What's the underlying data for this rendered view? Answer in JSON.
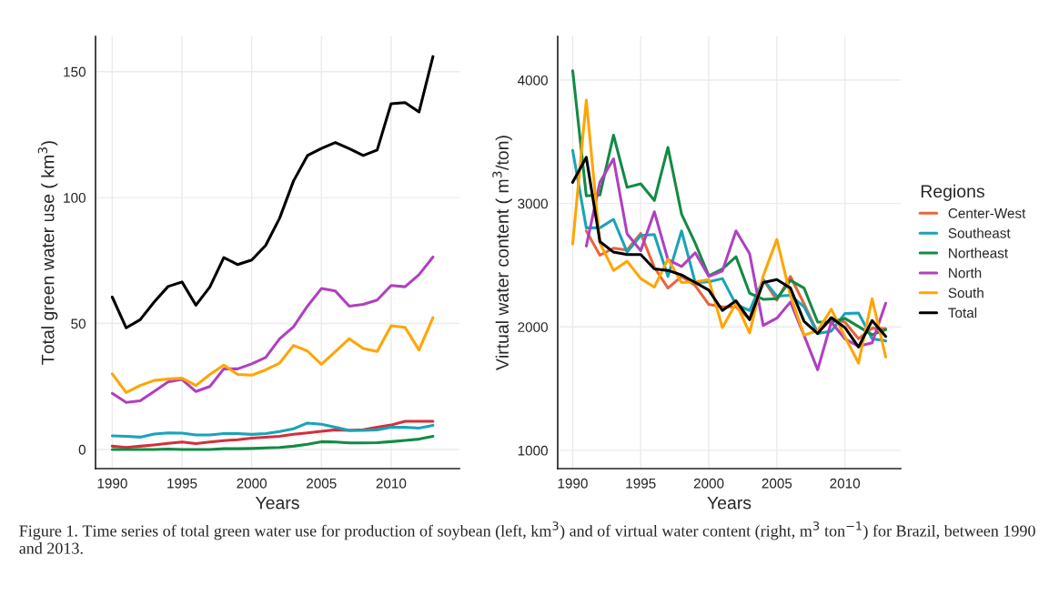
{
  "chart_data": [
    {
      "type": "line",
      "xlabel": "Years",
      "ylabel": "Total green water use ( km$^{3}$)",
      "x": [
        1990,
        1991,
        1992,
        1993,
        1994,
        1995,
        1996,
        1997,
        1998,
        1999,
        2000,
        2001,
        2002,
        2003,
        2004,
        2005,
        2006,
        2007,
        2008,
        2009,
        2010,
        2011,
        2012,
        2013
      ],
      "xlim": [
        1988.8,
        2014.9
      ],
      "xticks": [
        1990,
        1995,
        2000,
        2005,
        2010
      ],
      "ylim": [
        -7.6,
        164
      ],
      "yticks": [
        0,
        50,
        100,
        150
      ],
      "grid": true,
      "line_style": "solid",
      "annotations": [
        "Figure 1. Time series of total green water use for production of soybean (left, km$^{3}$) and of virtual water content (right, m$^{3}$ ton$^{−1}$) for Brazil, between 1990 and 2013."
      ],
      "series": [
        {
          "color": "#d42f3c",
          "values": [
            1.3,
            0.8,
            1.3,
            1.8,
            2.4,
            3,
            2.3,
            3,
            3.5,
            3.9,
            4.5,
            4.9,
            5.2,
            6,
            6.6,
            7.2,
            7.8,
            7.6,
            7.8,
            8.8,
            9.7,
            11.2,
            11.2,
            11.2
          ]
        },
        {
          "color": "#1aa3b8",
          "values": [
            5.4,
            5.2,
            4.9,
            6.1,
            6.6,
            6.5,
            5.8,
            5.8,
            6.3,
            6.3,
            6,
            6.3,
            7.1,
            8.2,
            10.5,
            10,
            8.8,
            7.6,
            7.6,
            7.8,
            8.8,
            8.8,
            8.5,
            9.6
          ]
        },
        {
          "color": "#138a45",
          "values": [
            0,
            0,
            0,
            0,
            0.2,
            0,
            0,
            0,
            0.3,
            0.3,
            0.4,
            0.6,
            0.8,
            1.3,
            2.1,
            3.1,
            3,
            2.6,
            2.6,
            2.7,
            3.1,
            3.6,
            4.1,
            5.2
          ]
        },
        {
          "color": "#b040c0",
          "values": [
            22.3,
            18.7,
            19.3,
            23,
            26.8,
            27.8,
            23,
            25,
            32,
            32,
            34,
            36.5,
            43.9,
            48.7,
            56.9,
            63.9,
            62.9,
            56.9,
            57.6,
            59.3,
            65.1,
            64.6,
            69.4,
            76.4
          ]
        },
        {
          "color": "#ffa500",
          "values": [
            30,
            22.6,
            25.4,
            27.4,
            28,
            28.3,
            25.4,
            29.8,
            33.5,
            29.8,
            29.5,
            31.6,
            34.3,
            41.3,
            39.1,
            33.8,
            38.9,
            44,
            40.1,
            38.9,
            49.1,
            48.5,
            39.5,
            52.3
          ]
        },
        {
          "color": "#000000",
          "values": [
            60.5,
            48.3,
            51.5,
            58.5,
            64.7,
            66.5,
            57.3,
            64.5,
            76.2,
            73.4,
            75.2,
            81,
            91.8,
            106.6,
            116.7,
            119.5,
            121.9,
            119.4,
            116.7,
            118.9,
            137.3,
            137.7,
            134,
            156
          ]
        }
      ]
    },
    {
      "type": "line",
      "xlabel": "Years",
      "ylabel": "Virtual water content ( m$^{3}$/ton)",
      "legend_title": "Regions",
      "x": [
        1990,
        1991,
        1992,
        1993,
        1994,
        1995,
        1996,
        1997,
        1998,
        1999,
        2000,
        2001,
        2002,
        2003,
        2004,
        2005,
        2006,
        2007,
        2008,
        2009,
        2010,
        2011,
        2012,
        2013
      ],
      "xlim": [
        1988.9,
        2014.1
      ],
      "xticks": [
        1990,
        1995,
        2000,
        2005,
        2010
      ],
      "ylim": [
        852,
        4354
      ],
      "yticks": [
        1000,
        2000,
        3000,
        4000
      ],
      "grid": true,
      "legend": "right",
      "line_style": "solid",
      "series": [
        {
          "name": "Center-West",
          "color": "#e8643c",
          "values": [
            null,
            2778,
            2581,
            2638,
            2623,
            2758,
            2483,
            2315,
            2409,
            2335,
            2182,
            2163,
            2163,
            2064,
            2384,
            2217,
            2409,
            2187,
            1953,
            2064,
            2039,
            1904,
            1990,
            1985
          ]
        },
        {
          "name": "Southeast",
          "color": "#1aa3b8",
          "values": [
            3431,
            2803,
            2803,
            2872,
            2606,
            2741,
            2748,
            2409,
            2778,
            2360,
            2365,
            2392,
            2182,
            2133,
            2384,
            2249,
            2256,
            2163,
            1946,
            1966,
            2108,
            2113,
            1904,
            1887
          ]
        },
        {
          "name": "Northeast",
          "color": "#138a45",
          "values": [
            4076,
            3062,
            3069,
            3554,
            3131,
            3160,
            3025,
            3455,
            2914,
            2680,
            2414,
            2470,
            2569,
            2273,
            2224,
            2229,
            2377,
            2315,
            2039,
            2039,
            2069,
            2003,
            1937,
            1978
          ]
        },
        {
          "name": "North",
          "color": "#b040c0",
          "values": [
            null,
            2655,
            3172,
            3362,
            2754,
            2618,
            2933,
            2545,
            2490,
            2601,
            2409,
            2453,
            2778,
            2594,
            2012,
            2071,
            2202,
            1931,
            1653,
            2039,
            1904,
            1843,
            1872,
            2192
          ]
        },
        {
          "name": "South",
          "color": "#ffa500",
          "values": [
            2672,
            3837,
            2680,
            2458,
            2532,
            2392,
            2323,
            2549,
            2360,
            2365,
            2384,
            1995,
            2192,
            1951,
            2414,
            2709,
            2254,
            1934,
            1970,
            2143,
            1921,
            1707,
            2229,
            1756
          ]
        },
        {
          "name": "Total",
          "color": "#000000",
          "values": [
            3172,
            3374,
            2692,
            2606,
            2586,
            2586,
            2470,
            2458,
            2421,
            2360,
            2298,
            2133,
            2212,
            2059,
            2360,
            2384,
            2315,
            2046,
            1946,
            2076,
            1995,
            1837,
            2052,
            1923
          ]
        }
      ]
    }
  ]
}
